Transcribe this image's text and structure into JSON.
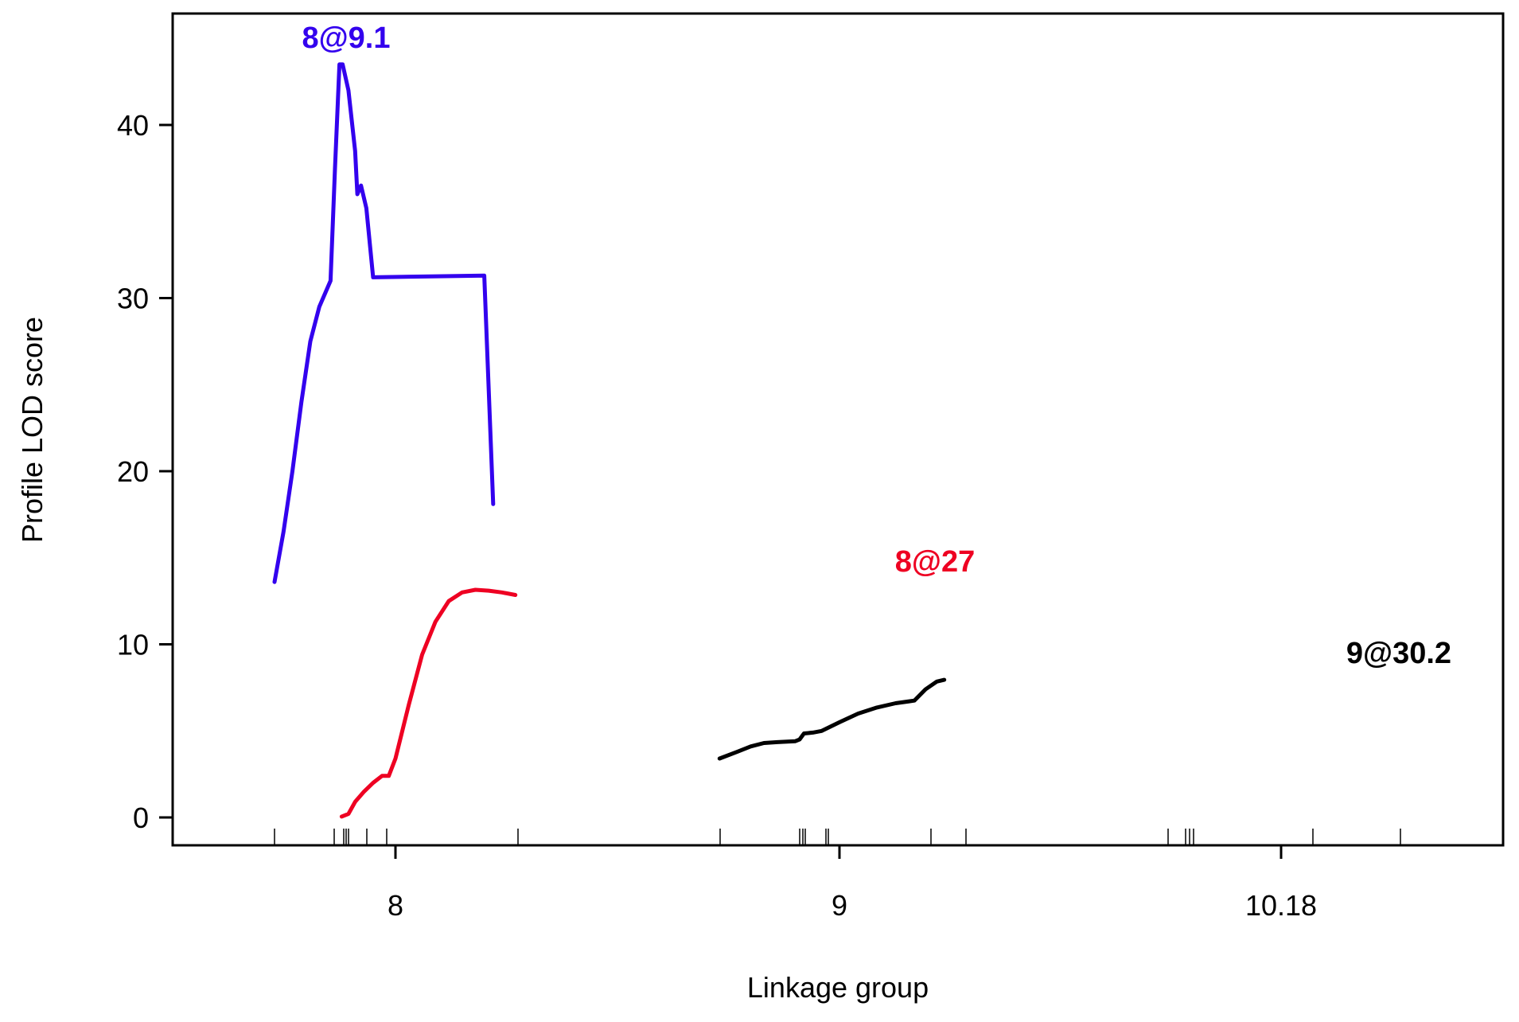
{
  "chart_data": {
    "type": "line",
    "title": "",
    "xlabel": "Linkage group",
    "ylabel": "Profile LOD score",
    "ylim": [
      -1.8,
      46
    ],
    "yticks": [
      0,
      10,
      20,
      30,
      40
    ],
    "x_tick_labels": [
      "8",
      "9",
      "10.18"
    ],
    "grid": false,
    "legend": "none",
    "series": [
      {
        "color": "#3300ee",
        "peak_label": "8@9.1",
        "points": [
          [
            7.73,
            13.6
          ],
          [
            7.75,
            16.5
          ],
          [
            7.77,
            20
          ],
          [
            7.79,
            24
          ],
          [
            7.81,
            27.5
          ],
          [
            7.83,
            29.5
          ],
          [
            7.855,
            31
          ],
          [
            7.865,
            37.5
          ],
          [
            7.875,
            43.5
          ],
          [
            7.882,
            43.5
          ],
          [
            7.895,
            42
          ],
          [
            7.91,
            38.5
          ],
          [
            7.915,
            36
          ],
          [
            7.923,
            36.5
          ],
          [
            7.935,
            35.2
          ],
          [
            7.95,
            31.2
          ],
          [
            8.2,
            31.3
          ],
          [
            8.22,
            18.1
          ]
        ]
      },
      {
        "color": "#ee0022",
        "peak_label": "8@27",
        "points": [
          [
            7.88,
            0.05
          ],
          [
            7.895,
            0.2
          ],
          [
            7.91,
            0.9
          ],
          [
            7.93,
            1.5
          ],
          [
            7.95,
            2.0
          ],
          [
            7.97,
            2.4
          ],
          [
            7.985,
            2.4
          ],
          [
            8.0,
            3.4
          ],
          [
            8.03,
            6.5
          ],
          [
            8.06,
            9.4
          ],
          [
            8.09,
            11.3
          ],
          [
            8.12,
            12.5
          ],
          [
            8.15,
            13.0
          ],
          [
            8.18,
            13.15
          ],
          [
            8.21,
            13.1
          ],
          [
            8.24,
            13.0
          ],
          [
            8.27,
            12.85
          ]
        ]
      },
      {
        "color": "#000000",
        "peak_label": "9@30.2",
        "points": [
          [
            8.73,
            3.4
          ],
          [
            8.77,
            3.8
          ],
          [
            8.8,
            4.1
          ],
          [
            8.83,
            4.3
          ],
          [
            8.86,
            4.35
          ],
          [
            8.9,
            4.4
          ],
          [
            8.91,
            4.5
          ],
          [
            8.92,
            4.85
          ],
          [
            8.94,
            4.9
          ],
          [
            8.96,
            5.0
          ],
          [
            9.0,
            5.5
          ],
          [
            9.05,
            6.0
          ],
          [
            9.1,
            6.35
          ],
          [
            9.15,
            6.6
          ],
          [
            9.2,
            6.75
          ],
          [
            9.23,
            7.4
          ],
          [
            9.26,
            7.85
          ],
          [
            9.28,
            7.95
          ]
        ]
      }
    ]
  }
}
